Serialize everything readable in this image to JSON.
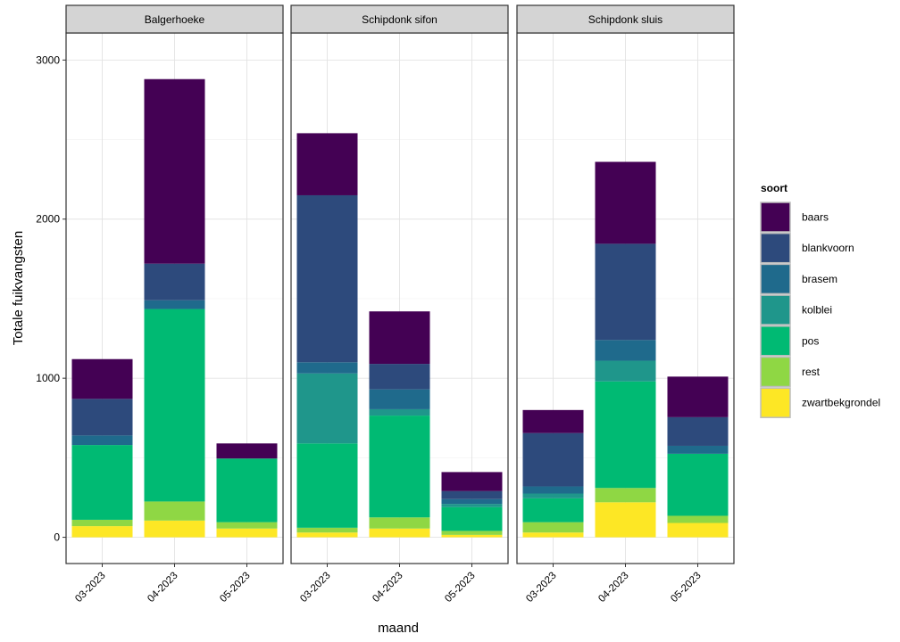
{
  "chart_data": {
    "type": "bar",
    "stacked": true,
    "faceted": true,
    "facets": [
      "Balgerhoeke",
      "Schipdonk sifon",
      "Schipdonk sluis"
    ],
    "categories": [
      "03-2023",
      "04-2023",
      "05-2023"
    ],
    "xlabel": "maand",
    "ylabel": "Totale fuikvangsten",
    "ylim": [
      -165,
      3170
    ],
    "yticks": [
      0,
      1000,
      2000,
      3000
    ],
    "legend": {
      "title": "soort",
      "position": "right",
      "entries": [
        "baars",
        "blankvoorn",
        "brasem",
        "kolblei",
        "pos",
        "rest",
        "zwartbekgrondel"
      ]
    },
    "colors": {
      "baars": "#440154",
      "blankvoorn": "#2d4a7c",
      "brasem": "#1f6a8c",
      "kolblei": "#1f968b",
      "pos": "#00ba73",
      "rest": "#8fd744",
      "zwartbekgrondel": "#fde725"
    },
    "series": [
      {
        "name": "zwartbekgrondel",
        "facets": [
          [
            70,
            105,
            55
          ],
          [
            30,
            55,
            15
          ],
          [
            30,
            220,
            90
          ]
        ]
      },
      {
        "name": "rest",
        "facets": [
          [
            40,
            120,
            40
          ],
          [
            30,
            70,
            25
          ],
          [
            65,
            90,
            45
          ]
        ]
      },
      {
        "name": "pos",
        "facets": [
          [
            470,
            1210,
            400
          ],
          [
            530,
            640,
            150
          ],
          [
            150,
            670,
            390
          ]
        ]
      },
      {
        "name": "kolblei",
        "facets": [
          [
            0,
            0,
            0
          ],
          [
            440,
            40,
            20
          ],
          [
            30,
            130,
            0
          ]
        ]
      },
      {
        "name": "brasem",
        "facets": [
          [
            60,
            55,
            0
          ],
          [
            70,
            125,
            30
          ],
          [
            45,
            130,
            50
          ]
        ]
      },
      {
        "name": "blankvoorn",
        "facets": [
          [
            230,
            230,
            0
          ],
          [
            1050,
            160,
            50
          ],
          [
            335,
            605,
            180
          ]
        ]
      },
      {
        "name": "baars",
        "facets": [
          [
            250,
            1160,
            95
          ],
          [
            390,
            330,
            120
          ],
          [
            145,
            515,
            255
          ]
        ]
      }
    ]
  }
}
